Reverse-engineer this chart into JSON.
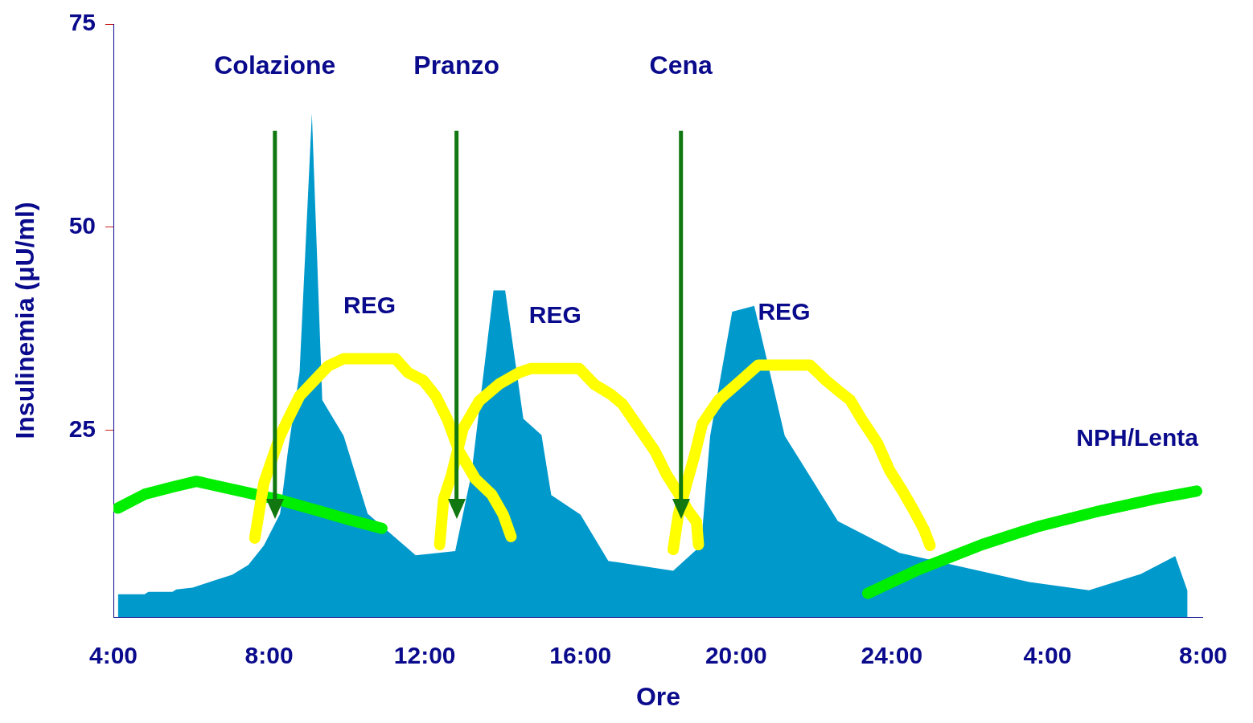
{
  "chart_data": {
    "type": "area",
    "xlabel": "Ore",
    "ylabel": "Insulinemia (μU/ml)",
    "xlim": [
      "2000-01-01T04:00",
      "2000-01-02T08:00"
    ],
    "xticks": [
      {
        "value": "2000-01-01T04:00",
        "label": "4:00"
      },
      {
        "value": "2000-01-01T08:00",
        "label": "8:00"
      },
      {
        "value": "2000-01-01T12:00",
        "label": "12:00"
      },
      {
        "value": "2000-01-01T16:00",
        "label": "16:00"
      },
      {
        "value": "2000-01-01T20:00",
        "label": "20:00"
      },
      {
        "value": "2000-01-02T00:00",
        "label": "24:00"
      },
      {
        "value": "2000-01-02T04:00",
        "label": "4:00"
      },
      {
        "value": "2000-01-02T08:00",
        "label": "8:00"
      }
    ],
    "ylim": [
      2,
      75
    ],
    "yticks": [
      25,
      50,
      75
    ],
    "series": [
      {
        "type": "area",
        "color": "#0099cc",
        "x": [
          "2000-01-01T04:07",
          "2000-01-01T04:48",
          "2000-01-01T04:54",
          "2000-01-01T05:31",
          "2000-01-01T05:37",
          "2000-01-01T06:02",
          "2000-01-01T06:32",
          "2000-01-01T07:03",
          "2000-01-01T07:28",
          "2000-01-01T07:52",
          "2000-01-01T08:17",
          "2000-01-01T08:29",
          "2000-01-01T08:47",
          "2000-01-01T09:06",
          "2000-01-01T09:22",
          "2000-01-01T09:55",
          "2000-01-01T10:32",
          "2000-01-01T11:46",
          "2000-01-01T12:47",
          "2000-01-01T13:12",
          "2000-01-01T13:46",
          "2000-01-01T14:04",
          "2000-01-01T14:32",
          "2000-01-01T15:00",
          "2000-01-01T15:15",
          "2000-01-01T16:00",
          "2000-01-01T16:43",
          "2000-01-01T18:23",
          "2000-01-01T19:06",
          "2000-01-01T19:20",
          "2000-01-01T19:54",
          "2000-01-01T20:28",
          "2000-01-01T21:15",
          "2000-01-01T22:37",
          "2000-01-02T00:12",
          "2000-01-02T03:32",
          "2000-01-02T05:04",
          "2000-01-02T06:24",
          "2000-01-02T07:17",
          "2000-01-02T07:36"
        ],
        "values": [
          4.8,
          4.8,
          5.1,
          5.1,
          5.4,
          5.6,
          6.4,
          7.2,
          8.4,
          10.8,
          14.7,
          22.4,
          32.1,
          64,
          28.7,
          24.3,
          14.7,
          9.6,
          10.1,
          19.6,
          42.2,
          42.2,
          26.4,
          24.4,
          17,
          14.6,
          8.9,
          7.7,
          10.8,
          24.3,
          39.6,
          40.3,
          24.3,
          13.8,
          9.9,
          6.3,
          5.3,
          7.3,
          9.5,
          5.2
        ]
      },
      {
        "type": "line",
        "name": "REG",
        "color": "#ffff00",
        "x": [
          "2000-01-01T07:38",
          "2000-01-01T07:52",
          "2000-01-01T08:17",
          "2000-01-01T08:29",
          "2000-01-01T08:47",
          "2000-01-01T09:31",
          "2000-01-01T09:55",
          "2000-01-01T11:15",
          "2000-01-01T11:34",
          "2000-01-01T11:58",
          "2000-01-01T12:17",
          "2000-01-01T12:35",
          "2000-01-01T12:53",
          "2000-01-01T13:18",
          "2000-01-01T13:43",
          "2000-01-01T14:01",
          "2000-01-01T14:13"
        ],
        "values": [
          11.7,
          18.5,
          24.3,
          26.3,
          29.2,
          32.9,
          33.8,
          33.8,
          32.1,
          31.1,
          29.2,
          26.3,
          22.4,
          19,
          17.1,
          14.6,
          11.9
        ]
      },
      {
        "type": "line",
        "name": "REG",
        "color": "#ffff00",
        "x": [
          "2000-01-01T12:23",
          "2000-01-01T12:29",
          "2000-01-01T12:41",
          "2000-01-01T12:59",
          "2000-01-01T13:24",
          "2000-01-01T13:55",
          "2000-01-01T14:26",
          "2000-01-01T14:44",
          "2000-01-01T15:58",
          "2000-01-01T16:22",
          "2000-01-01T16:47",
          "2000-01-01T17:05",
          "2000-01-01T17:30",
          "2000-01-01T17:55",
          "2000-01-01T18:13",
          "2000-01-01T18:32",
          "2000-01-01T18:46",
          "2000-01-01T18:59",
          "2000-01-01T19:02"
        ],
        "values": [
          10.9,
          16.5,
          19.4,
          25.2,
          28.6,
          30.7,
          32.1,
          32.6,
          32.6,
          30.6,
          29.4,
          28.2,
          25.3,
          22.4,
          19.5,
          17.1,
          15.1,
          13.7,
          10.9
        ]
      },
      {
        "type": "line",
        "name": "REG",
        "color": "#ffff00",
        "x": [
          "2000-01-01T18:23",
          "2000-01-01T18:31",
          "2000-01-01T18:44",
          "2000-01-01T18:56",
          "2000-01-01T19:08",
          "2000-01-01T19:33",
          "2000-01-01T20:10",
          "2000-01-01T20:34",
          "2000-01-01T21:54",
          "2000-01-01T22:19",
          "2000-01-01T22:37",
          "2000-01-01T22:56",
          "2000-01-01T23:14",
          "2000-01-01T23:38",
          "2000-01-01T23:57",
          "2000-01-02T00:16",
          "2000-01-02T00:34",
          "2000-01-02T00:50",
          "2000-01-02T00:59"
        ],
        "values": [
          10.3,
          14.6,
          18.5,
          21.9,
          25.8,
          28.7,
          31.3,
          33,
          33,
          31.1,
          29.9,
          28.7,
          26.3,
          23.4,
          20,
          17.6,
          15.1,
          12.7,
          10.8
        ]
      },
      {
        "type": "line",
        "color": "#00ee00",
        "x": [
          "2000-01-01T04:07",
          "2000-01-01T04:48",
          "2000-01-01T05:31",
          "2000-01-01T06:08",
          "2000-01-01T07:16",
          "2000-01-01T08:17",
          "2000-01-01T09:19",
          "2000-01-01T10:07",
          "2000-01-01T10:54"
        ],
        "values": [
          15.4,
          17.1,
          18,
          18.7,
          17.5,
          16.4,
          15,
          13.9,
          12.9
        ]
      },
      {
        "type": "line",
        "name": "NPH/Lenta",
        "color": "#00ee00",
        "x": [
          "2000-01-01T23:23",
          "2000-01-02T00:40",
          "2000-01-02T02:19",
          "2000-01-02T03:44",
          "2000-01-02T05:23",
          "2000-01-02T06:49",
          "2000-01-02T07:50"
        ],
        "values": [
          4.9,
          7.8,
          10.9,
          13.1,
          15.1,
          16.6,
          17.5
        ]
      }
    ],
    "ref_lines": [
      {
        "axis": "x",
        "value": "2000-01-01T08:09",
        "label": "Colazione",
        "color": "#117711"
      },
      {
        "axis": "x",
        "value": "2000-01-01T12:49",
        "label": "Pranzo",
        "color": "#117711"
      },
      {
        "axis": "x",
        "value": "2000-01-01T18:35",
        "label": "Cena",
        "color": "#117711"
      }
    ],
    "legend": false
  }
}
